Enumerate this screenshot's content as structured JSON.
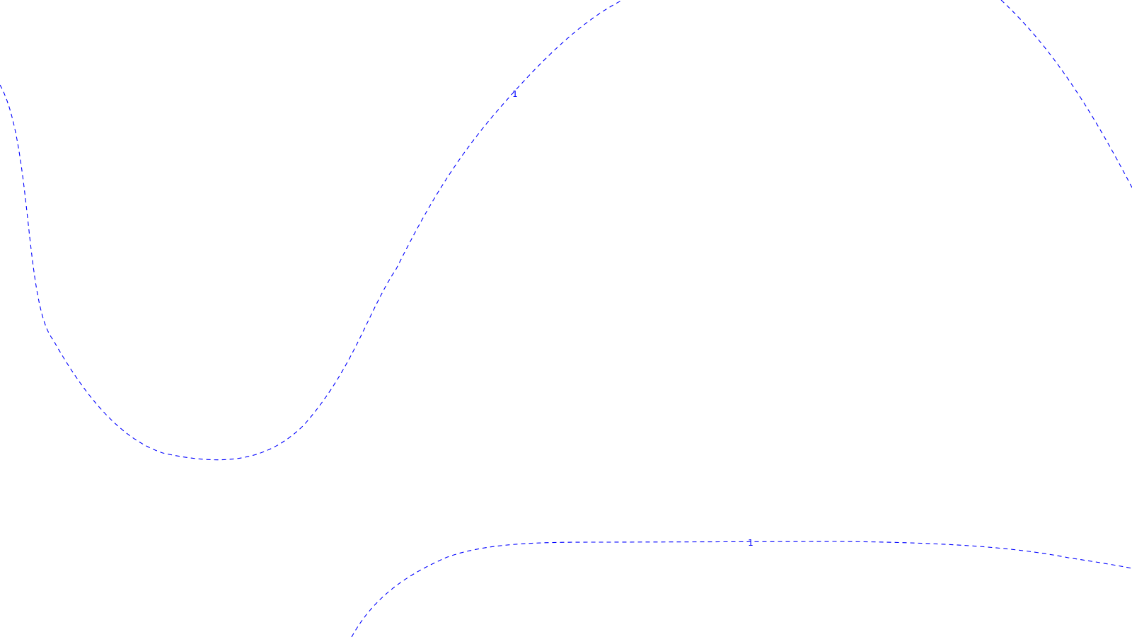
{
  "chart_data": {
    "type": "contour",
    "line_style": "dashed",
    "line_color": "#0000ff",
    "background": "#ffffff",
    "level_labels": [
      {
        "text": "1"
      },
      {
        "text": "1"
      }
    ]
  }
}
